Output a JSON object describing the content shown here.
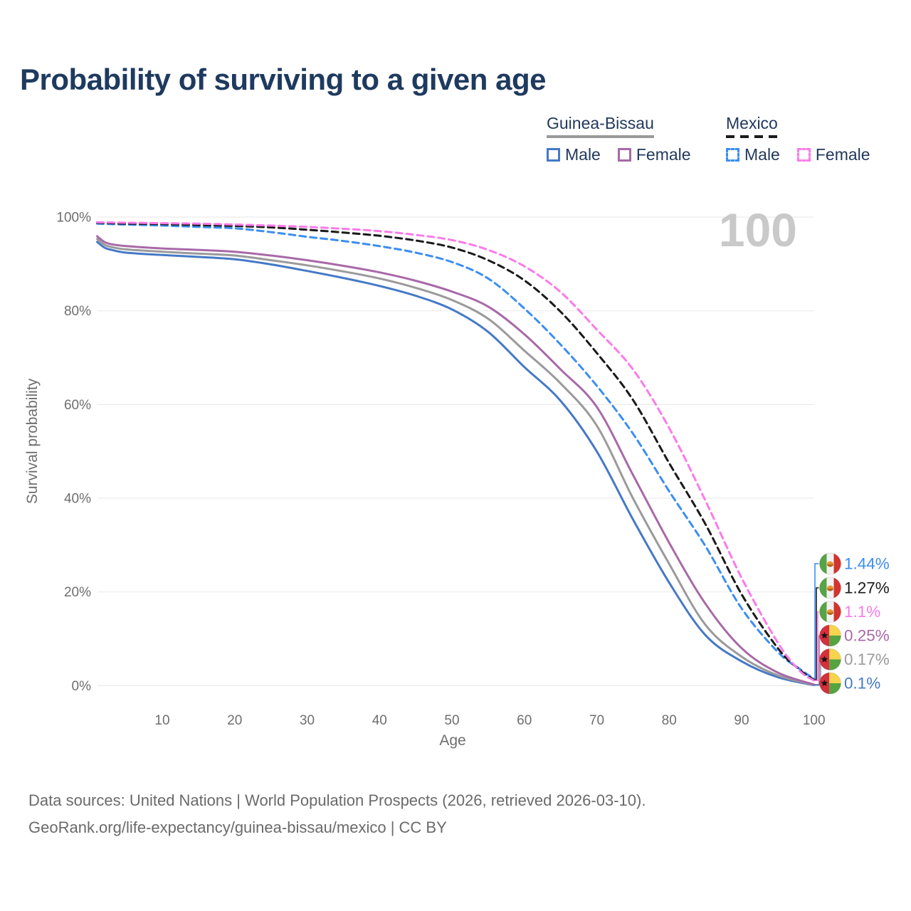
{
  "title": "Probability of surviving to a given age",
  "watermark_age": "100",
  "legend": {
    "groups": [
      {
        "country": "Guinea-Bissau",
        "line_style": "solid",
        "items": [
          {
            "label": "Male",
            "color": "#4579c6"
          },
          {
            "label": "Female",
            "color": "#a869a8"
          }
        ]
      },
      {
        "country": "Mexico",
        "line_style": "dashed",
        "items": [
          {
            "label": "Male",
            "color": "#3b8ef2"
          },
          {
            "label": "Female",
            "color": "#fb7ae9"
          }
        ]
      }
    ]
  },
  "chart_data": {
    "type": "line",
    "title": "Probability of surviving to a given age",
    "xlabel": "Age",
    "ylabel": "Survival probability",
    "xlim": [
      1,
      100
    ],
    "ylim": [
      0,
      100
    ],
    "x_ticks": [
      10,
      20,
      30,
      40,
      50,
      60,
      70,
      80,
      90,
      100
    ],
    "y_ticks": [
      0,
      20,
      40,
      60,
      80,
      100
    ],
    "y_tick_suffix": "%",
    "grid": "horizontal",
    "legend_position": "top-right",
    "gridline_color": "#ececec",
    "axis_text_color": "#6e6e6e",
    "series": [
      {
        "id": "gw-male",
        "name": "Guinea-Bissau Male",
        "country": "Guinea-Bissau",
        "sex": "male",
        "style": "solid",
        "color": "#4579c6",
        "end_value_pct": 0.1,
        "points": [
          [
            1,
            94.7
          ],
          [
            2,
            93.5
          ],
          [
            3,
            93.0
          ],
          [
            5,
            92.4
          ],
          [
            10,
            91.9
          ],
          [
            15,
            91.5
          ],
          [
            20,
            91.0
          ],
          [
            25,
            89.9
          ],
          [
            30,
            88.5
          ],
          [
            35,
            87.0
          ],
          [
            40,
            85.3
          ],
          [
            45,
            83.2
          ],
          [
            50,
            80.3
          ],
          [
            55,
            75.5
          ],
          [
            60,
            68.0
          ],
          [
            65,
            60.8
          ],
          [
            70,
            50.0
          ],
          [
            75,
            35.5
          ],
          [
            80,
            22.0
          ],
          [
            85,
            10.8
          ],
          [
            90,
            5.2
          ],
          [
            95,
            1.8
          ],
          [
            100,
            0.1
          ]
        ]
      },
      {
        "id": "gw-avg",
        "name": "Guinea-Bissau (both sexes)",
        "country": "Guinea-Bissau",
        "sex": "overall",
        "style": "solid",
        "color": "#9a9a9a",
        "end_value_pct": 0.17,
        "points": [
          [
            1,
            95.3
          ],
          [
            2,
            94.1
          ],
          [
            3,
            93.6
          ],
          [
            5,
            93.1
          ],
          [
            10,
            92.6
          ],
          [
            15,
            92.2
          ],
          [
            20,
            91.8
          ],
          [
            25,
            90.8
          ],
          [
            30,
            89.7
          ],
          [
            35,
            88.4
          ],
          [
            40,
            86.9
          ],
          [
            45,
            84.9
          ],
          [
            50,
            82.3
          ],
          [
            55,
            78.3
          ],
          [
            60,
            71.5
          ],
          [
            65,
            64.5
          ],
          [
            70,
            55.5
          ],
          [
            75,
            40.0
          ],
          [
            80,
            26.0
          ],
          [
            85,
            13.0
          ],
          [
            90,
            6.2
          ],
          [
            95,
            2.2
          ],
          [
            100,
            0.17
          ]
        ]
      },
      {
        "id": "gw-female",
        "name": "Guinea-Bissau Female",
        "country": "Guinea-Bissau",
        "sex": "female",
        "style": "solid",
        "color": "#a869a8",
        "end_value_pct": 0.25,
        "points": [
          [
            1,
            95.9
          ],
          [
            2,
            94.7
          ],
          [
            3,
            94.2
          ],
          [
            5,
            93.8
          ],
          [
            10,
            93.3
          ],
          [
            15,
            93.0
          ],
          [
            20,
            92.6
          ],
          [
            25,
            91.8
          ],
          [
            30,
            90.8
          ],
          [
            35,
            89.6
          ],
          [
            40,
            88.2
          ],
          [
            45,
            86.4
          ],
          [
            50,
            84.1
          ],
          [
            55,
            80.9
          ],
          [
            60,
            75.0
          ],
          [
            65,
            67.5
          ],
          [
            70,
            59.5
          ],
          [
            75,
            45.0
          ],
          [
            80,
            30.5
          ],
          [
            85,
            17.5
          ],
          [
            90,
            8.0
          ],
          [
            95,
            2.8
          ],
          [
            100,
            0.25
          ]
        ]
      },
      {
        "id": "mx-male",
        "name": "Mexico Male",
        "country": "Mexico",
        "sex": "male",
        "style": "dashed",
        "color": "#3b8ef2",
        "end_value_pct": 1.44,
        "points": [
          [
            1,
            98.6
          ],
          [
            5,
            98.4
          ],
          [
            10,
            98.2
          ],
          [
            15,
            97.9
          ],
          [
            20,
            97.6
          ],
          [
            25,
            96.8
          ],
          [
            30,
            95.8
          ],
          [
            35,
            94.9
          ],
          [
            40,
            93.8
          ],
          [
            45,
            92.4
          ],
          [
            50,
            90.4
          ],
          [
            55,
            86.9
          ],
          [
            60,
            80.5
          ],
          [
            65,
            72.8
          ],
          [
            70,
            64.0
          ],
          [
            75,
            53.8
          ],
          [
            80,
            41.5
          ],
          [
            85,
            29.8
          ],
          [
            90,
            16.5
          ],
          [
            95,
            7.2
          ],
          [
            98,
            3.6
          ],
          [
            100,
            1.44
          ]
        ]
      },
      {
        "id": "mx-avg",
        "name": "Mexico (both sexes)",
        "country": "Mexico",
        "sex": "overall",
        "style": "dashed",
        "color": "#1a1a1a",
        "end_value_pct": 1.27,
        "points": [
          [
            1,
            98.8
          ],
          [
            5,
            98.6
          ],
          [
            10,
            98.5
          ],
          [
            15,
            98.3
          ],
          [
            20,
            98.1
          ],
          [
            25,
            97.8
          ],
          [
            30,
            97.3
          ],
          [
            35,
            96.7
          ],
          [
            40,
            96.0
          ],
          [
            45,
            95.0
          ],
          [
            50,
            93.5
          ],
          [
            55,
            90.8
          ],
          [
            60,
            86.5
          ],
          [
            65,
            79.8
          ],
          [
            70,
            71.0
          ],
          [
            75,
            61.0
          ],
          [
            80,
            47.5
          ],
          [
            85,
            34.5
          ],
          [
            90,
            19.5
          ],
          [
            95,
            8.0
          ],
          [
            98,
            3.4
          ],
          [
            100,
            1.27
          ]
        ]
      },
      {
        "id": "mx-female",
        "name": "Mexico Female",
        "country": "Mexico",
        "sex": "female",
        "style": "dashed",
        "color": "#fb7ae9",
        "end_value_pct": 1.1,
        "points": [
          [
            1,
            98.9
          ],
          [
            5,
            98.8
          ],
          [
            10,
            98.7
          ],
          [
            15,
            98.6
          ],
          [
            20,
            98.4
          ],
          [
            25,
            98.2
          ],
          [
            30,
            97.9
          ],
          [
            35,
            97.5
          ],
          [
            40,
            97.0
          ],
          [
            45,
            96.2
          ],
          [
            50,
            95.1
          ],
          [
            55,
            93.0
          ],
          [
            60,
            89.5
          ],
          [
            65,
            84.0
          ],
          [
            70,
            76.0
          ],
          [
            75,
            67.5
          ],
          [
            80,
            55.0
          ],
          [
            85,
            39.5
          ],
          [
            90,
            23.0
          ],
          [
            95,
            9.2
          ],
          [
            98,
            3.2
          ],
          [
            100,
            1.1
          ]
        ]
      }
    ],
    "end_labels": [
      {
        "series": "mx-male",
        "value": "1.44%",
        "flag": "mexico",
        "color": "#3b8ef2"
      },
      {
        "series": "mx-avg",
        "value": "1.27%",
        "flag": "mexico",
        "color": "#1a1a1a"
      },
      {
        "series": "mx-female",
        "value": "1.1%",
        "flag": "mexico",
        "color": "#fb7ae9"
      },
      {
        "series": "gw-female",
        "value": "0.25%",
        "flag": "guinea-bissau",
        "color": "#a869a8"
      },
      {
        "series": "gw-avg",
        "value": "0.17%",
        "flag": "guinea-bissau",
        "color": "#9a9a9a"
      },
      {
        "series": "gw-male",
        "value": "0.1%",
        "flag": "guinea-bissau",
        "color": "#4579c6"
      }
    ]
  },
  "footer": {
    "line1": "Data sources: United Nations | World Population Prospects (2026, retrieved 2026-03-10).",
    "line2": "GeoRank.org/life-expectancy/guinea-bissau/mexico | CC BY"
  }
}
